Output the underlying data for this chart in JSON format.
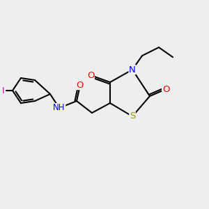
{
  "bg_color": "#eeeeee",
  "bond_color": "#000000",
  "bond_width": 1.5,
  "atom_colors": {
    "N": "#0000ff",
    "O": "#ff0000",
    "S": "#999900",
    "I": "#cc00cc",
    "H": "#008888",
    "C": "#000000"
  },
  "font_size": 8.5
}
